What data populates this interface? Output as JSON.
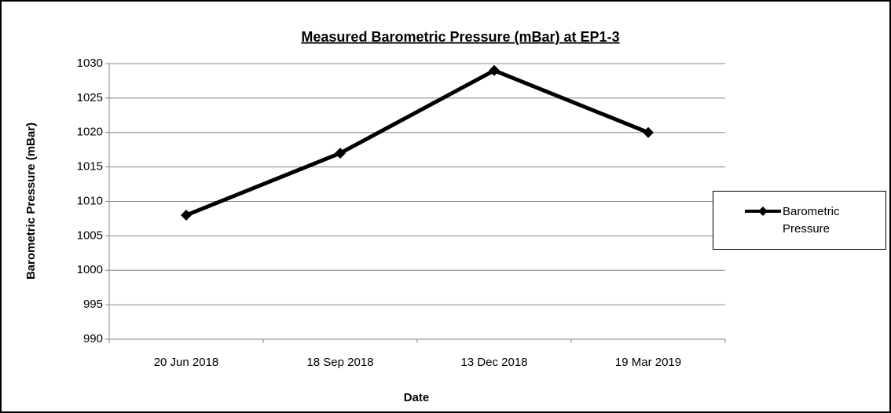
{
  "chart_data": {
    "type": "line",
    "title": "Measured Barometric Pressure (mBar) at EP1-3",
    "x_label": "Date",
    "y_label": "Barometric Pressure (mBar)",
    "categories": [
      "20 Jun 2018",
      "18 Sep 2018",
      "13 Dec 2018",
      "19 Mar 2019"
    ],
    "series": [
      {
        "name": "Barometric Pressure",
        "color": "#000000",
        "values": [
          1008,
          1017,
          1029,
          1020
        ]
      }
    ],
    "ylim": [
      990,
      1030
    ],
    "yticks": [
      990,
      995,
      1000,
      1005,
      1010,
      1015,
      1020,
      1025,
      1030
    ],
    "grid": true,
    "legend": "right"
  }
}
